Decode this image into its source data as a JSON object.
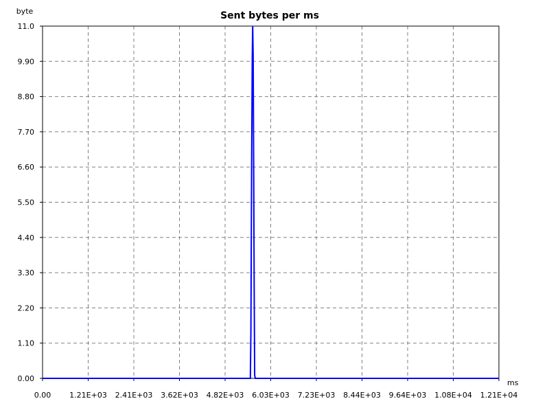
{
  "chart_data": {
    "type": "line",
    "title": "Sent bytes per ms",
    "ylabel": "byte",
    "xlabel": "ms",
    "xlim": [
      0,
      12100
    ],
    "ylim": [
      0,
      11.0
    ],
    "x_tick_labels": [
      "0.00",
      "1.21E+03",
      "2.41E+03",
      "3.62E+03",
      "4.82E+03",
      "6.03E+03",
      "7.23E+03",
      "8.44E+03",
      "9.64E+03",
      "1.08E+04",
      "1.21E+04"
    ],
    "y_tick_labels": [
      "0.00",
      "1.10",
      "2.20",
      "3.30",
      "4.40",
      "5.50",
      "6.60",
      "7.70",
      "8.80",
      "9.90",
      "11.0"
    ],
    "grid": true,
    "series": [
      {
        "color": "#0000ff",
        "x": [
          0,
          5510,
          5525,
          5545,
          5560,
          5572,
          5585,
          5598,
          5612,
          5625,
          5640,
          5655,
          5670,
          5685,
          12100
        ],
        "y": [
          0,
          0,
          1.4,
          6.8,
          10.0,
          11.0,
          10.1,
          6.4,
          2.8,
          0.1,
          0,
          0,
          0,
          0,
          0
        ]
      }
    ]
  }
}
